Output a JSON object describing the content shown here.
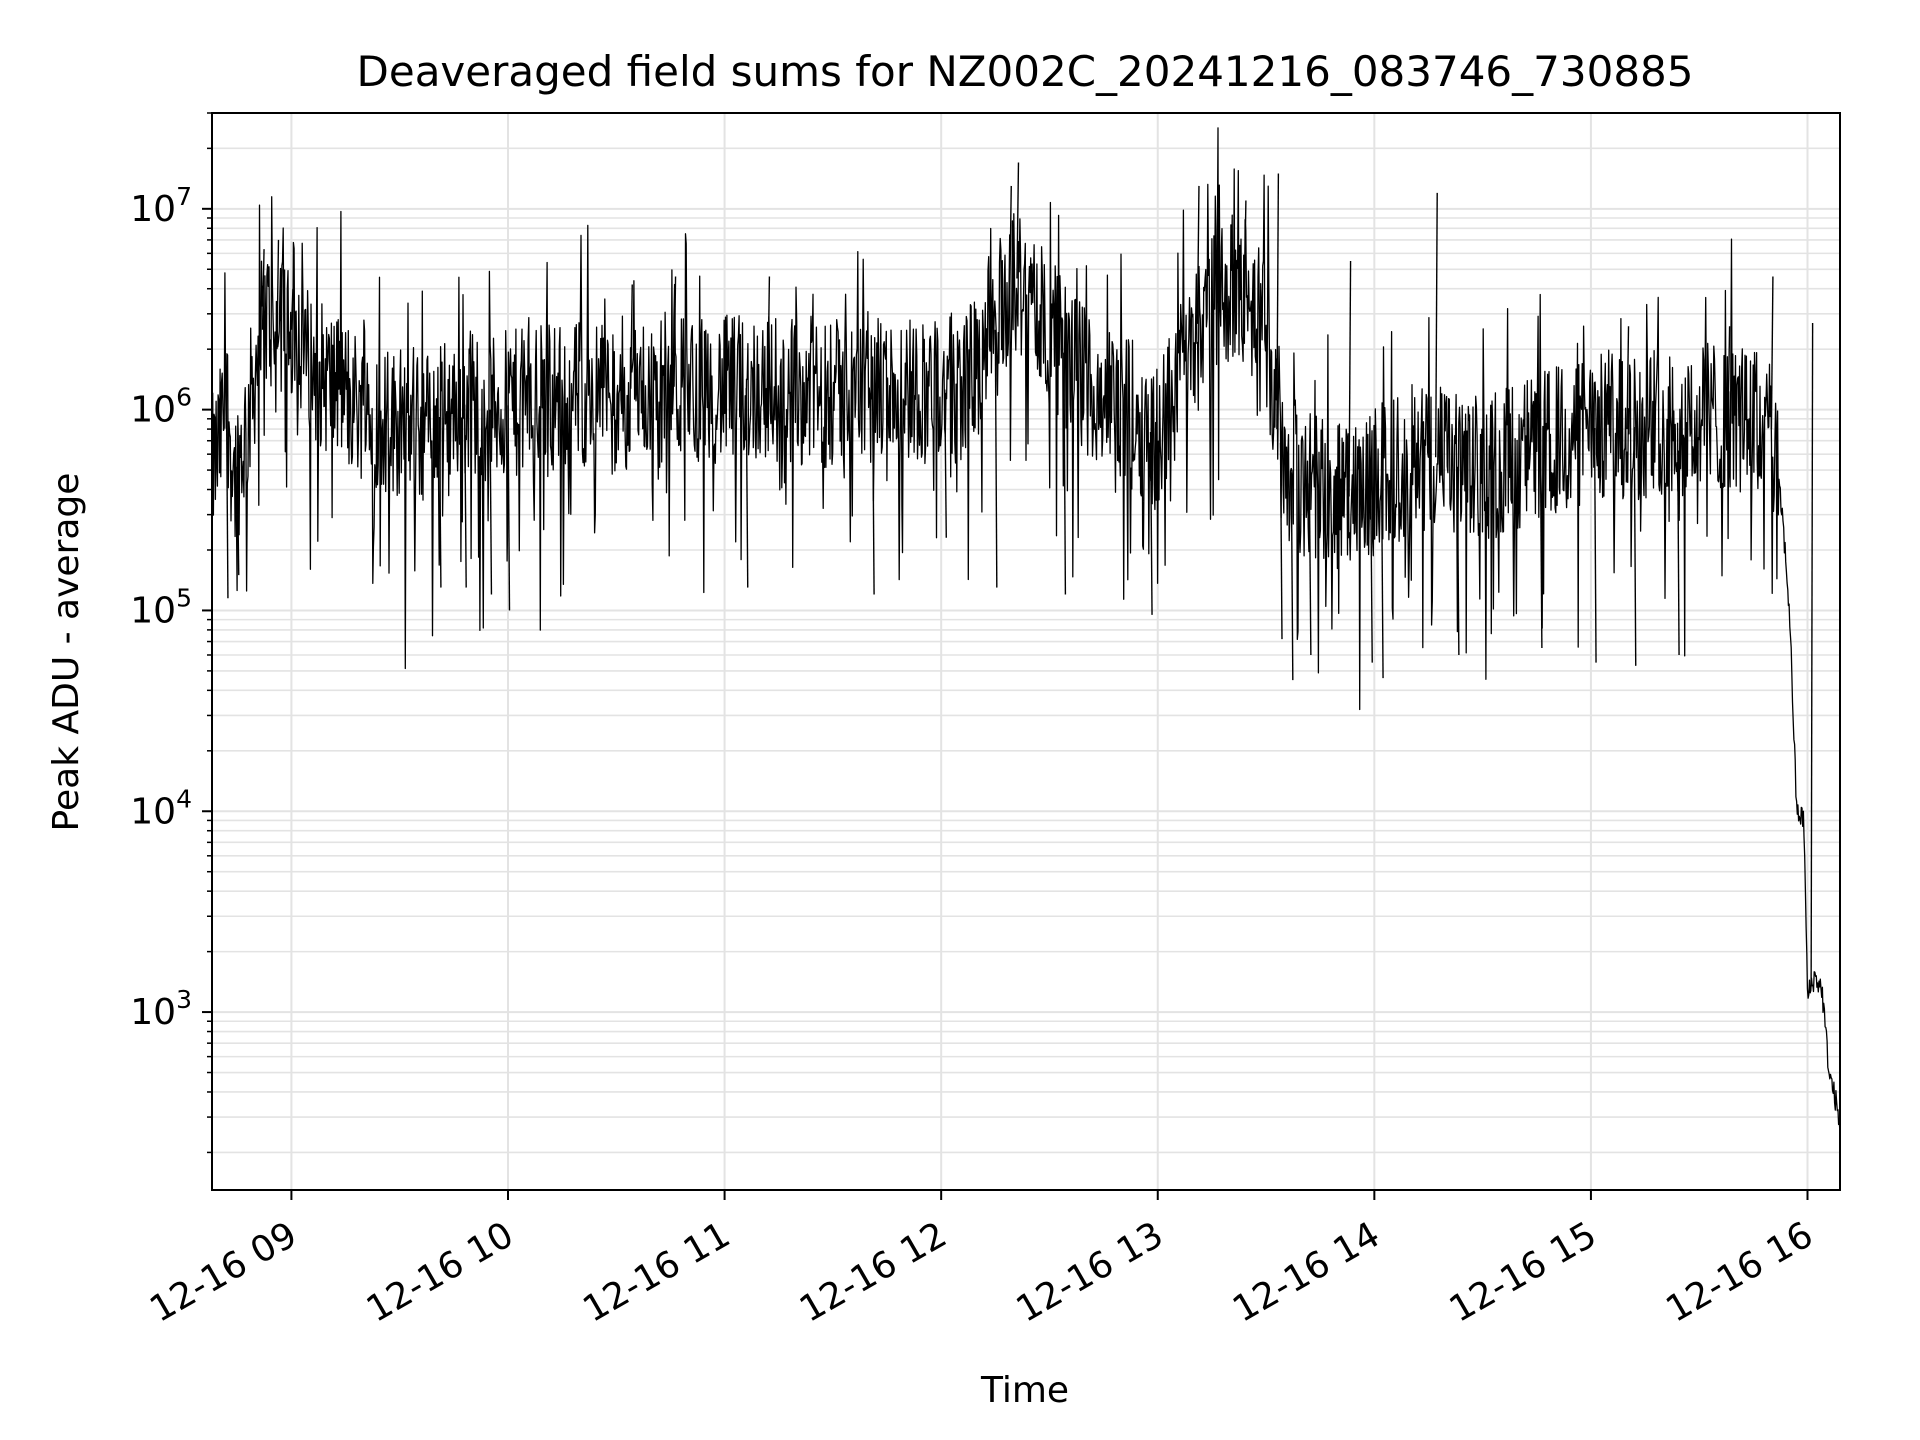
{
  "chart_data": {
    "type": "line",
    "title": "Deaveraged field sums for NZ002C_20241216_083746_730885",
    "xlabel": "Time",
    "ylabel": "Peak ADU - average",
    "yscale": "log",
    "xlim": [
      "2024-12-16 08:38",
      "2024-12-16 16:09"
    ],
    "ylim": [
      130,
      30000000
    ],
    "grid": true,
    "line_color": "#000000",
    "x_ticks": [
      {
        "label": "12-16 09",
        "time": "2024-12-16 09:00"
      },
      {
        "label": "12-16 10",
        "time": "2024-12-16 10:00"
      },
      {
        "label": "12-16 11",
        "time": "2024-12-16 11:00"
      },
      {
        "label": "12-16 12",
        "time": "2024-12-16 12:00"
      },
      {
        "label": "12-16 13",
        "time": "2024-12-16 13:00"
      },
      {
        "label": "12-16 14",
        "time": "2024-12-16 14:00"
      },
      {
        "label": "12-16 15",
        "time": "2024-12-16 15:00"
      },
      {
        "label": "12-16 16",
        "time": "2024-12-16 16:00"
      }
    ],
    "y_ticks": [
      {
        "base": "10",
        "exp": "3",
        "value": 1000
      },
      {
        "base": "10",
        "exp": "4",
        "value": 10000
      },
      {
        "base": "10",
        "exp": "5",
        "value": 100000
      },
      {
        "base": "10",
        "exp": "6",
        "value": 1000000
      },
      {
        "base": "10",
        "exp": "7",
        "value": 10000000
      }
    ],
    "series": [
      {
        "points": [
          [
            "2024-12-16 08:38",
            500000
          ],
          [
            "2024-12-16 08:40",
            650000
          ],
          [
            "2024-12-16 08:42",
            1200000
          ],
          [
            "2024-12-16 08:44",
            450000
          ],
          [
            "2024-12-16 08:46",
            600000
          ],
          [
            "2024-12-16 08:48",
            900000
          ],
          [
            "2024-12-16 08:50",
            1600000
          ],
          [
            "2024-12-16 08:52",
            2500000
          ],
          [
            "2024-12-16 08:54",
            3000000
          ],
          [
            "2024-12-16 08:56",
            2000000
          ],
          [
            "2024-12-16 08:58",
            3800000
          ],
          [
            "2024-12-16 09:00",
            2500000
          ],
          [
            "2024-12-16 09:02",
            2200000
          ],
          [
            "2024-12-16 09:04",
            1800000
          ],
          [
            "2024-12-16 09:08",
            1500000
          ],
          [
            "2024-12-16 09:12",
            1300000
          ],
          [
            "2024-12-16 09:16",
            1200000
          ],
          [
            "2024-12-16 09:20",
            1000000
          ],
          [
            "2024-12-16 09:25",
            900000
          ],
          [
            "2024-12-16 09:30",
            850000
          ],
          [
            "2024-12-16 09:35",
            800000
          ],
          [
            "2024-12-16 09:40",
            900000
          ],
          [
            "2024-12-16 09:45",
            1000000
          ],
          [
            "2024-12-16 09:50",
            1100000
          ],
          [
            "2024-12-16 09:55",
            1000000
          ],
          [
            "2024-12-16 10:00",
            1050000
          ],
          [
            "2024-12-16 10:10",
            1150000
          ],
          [
            "2024-12-16 10:20",
            1200000
          ],
          [
            "2024-12-16 10:30",
            1250000
          ],
          [
            "2024-12-16 10:40",
            1300000
          ],
          [
            "2024-12-16 10:50",
            1300000
          ],
          [
            "2024-12-16 11:00",
            1250000
          ],
          [
            "2024-12-16 11:10",
            1300000
          ],
          [
            "2024-12-16 11:20",
            1250000
          ],
          [
            "2024-12-16 11:30",
            1200000
          ],
          [
            "2024-12-16 11:40",
            1200000
          ],
          [
            "2024-12-16 11:50",
            1300000
          ],
          [
            "2024-12-16 12:00",
            1250000
          ],
          [
            "2024-12-16 12:05",
            1300000
          ],
          [
            "2024-12-16 12:10",
            1600000
          ],
          [
            "2024-12-16 12:15",
            2500000
          ],
          [
            "2024-12-16 12:18",
            3500000
          ],
          [
            "2024-12-16 12:21",
            4500000
          ],
          [
            "2024-12-16 12:24",
            3500000
          ],
          [
            "2024-12-16 12:27",
            3000000
          ],
          [
            "2024-12-16 12:30",
            2500000
          ],
          [
            "2024-12-16 12:35",
            1800000
          ],
          [
            "2024-12-16 12:40",
            1400000
          ],
          [
            "2024-12-16 12:45",
            1200000
          ],
          [
            "2024-12-16 12:50",
            1000000
          ],
          [
            "2024-12-16 12:55",
            900000
          ],
          [
            "2024-12-16 13:00",
            700000
          ],
          [
            "2024-12-16 13:05",
            1500000
          ],
          [
            "2024-12-16 13:10",
            2500000
          ],
          [
            "2024-12-16 13:15",
            3500000
          ],
          [
            "2024-12-16 13:20",
            4000000
          ],
          [
            "2024-12-16 13:25",
            3500000
          ],
          [
            "2024-12-16 13:30",
            2500000
          ],
          [
            "2024-12-16 13:33",
            800000
          ],
          [
            "2024-12-16 13:36",
            500000
          ],
          [
            "2024-12-16 13:40",
            450000
          ],
          [
            "2024-12-16 13:45",
            400000
          ],
          [
            "2024-12-16 13:50",
            400000
          ],
          [
            "2024-12-16 13:55",
            350000
          ],
          [
            "2024-12-16 14:00",
            450000
          ],
          [
            "2024-12-16 14:05",
            500000
          ],
          [
            "2024-12-16 14:10",
            550000
          ],
          [
            "2024-12-16 14:15",
            600000
          ],
          [
            "2024-12-16 14:20",
            550000
          ],
          [
            "2024-12-16 14:25",
            500000
          ],
          [
            "2024-12-16 14:30",
            500000
          ],
          [
            "2024-12-16 14:35",
            550000
          ],
          [
            "2024-12-16 14:40",
            600000
          ],
          [
            "2024-12-16 14:45",
            650000
          ],
          [
            "2024-12-16 14:50",
            700000
          ],
          [
            "2024-12-16 14:55",
            750000
          ],
          [
            "2024-12-16 15:00",
            800000
          ],
          [
            "2024-12-16 15:05",
            850000
          ],
          [
            "2024-12-16 15:10",
            800000
          ],
          [
            "2024-12-16 15:15",
            850000
          ],
          [
            "2024-12-16 15:20",
            900000
          ],
          [
            "2024-12-16 15:25",
            850000
          ],
          [
            "2024-12-16 15:30",
            900000
          ],
          [
            "2024-12-16 15:35",
            950000
          ],
          [
            "2024-12-16 15:40",
            900000
          ],
          [
            "2024-12-16 15:45",
            850000
          ],
          [
            "2024-12-16 15:50",
            800000
          ],
          [
            "2024-12-16 15:53",
            300000
          ],
          [
            "2024-12-16 15:55",
            100000
          ],
          [
            "2024-12-16 15:57",
            10000
          ],
          [
            "2024-12-16 15:59",
            9000
          ],
          [
            "2024-12-16 16:00",
            1200
          ],
          [
            "2024-12-16 16:02",
            1500
          ],
          [
            "2024-12-16 16:04",
            1300
          ],
          [
            "2024-12-16 16:06",
            500
          ],
          [
            "2024-12-16 16:08",
            350
          ],
          [
            "2024-12-16 16:09",
            250
          ]
        ],
        "spikes": [
          [
            "2024-12-16 08:52",
            6300000
          ],
          [
            "2024-12-16 08:56",
            7000000
          ],
          [
            "2024-12-16 08:57",
            5000000
          ],
          [
            "2024-12-16 09:00",
            4000000
          ],
          [
            "2024-12-16 10:34",
            4200000
          ],
          [
            "2024-12-16 10:46",
            4600000
          ],
          [
            "2024-12-16 11:12",
            4600000
          ],
          [
            "2024-12-16 12:21",
            17000000
          ],
          [
            "2024-12-16 12:19",
            13000000
          ],
          [
            "2024-12-16 13:11",
            13000000
          ],
          [
            "2024-12-16 13:24",
            11000000
          ],
          [
            "2024-12-16 13:33",
            15000000
          ],
          [
            "2024-12-16 13:53",
            5500000
          ],
          [
            "2024-12-16 14:17",
            12000000
          ],
          [
            "2024-12-16 15:50",
            4600000
          ],
          [
            "2024-12-16 15:10",
            2600000
          ],
          [
            "2024-12-16 15:38",
            2600000
          ],
          [
            "2024-12-16 16:01",
            2700000
          ]
        ],
        "dips": [
          [
            "2024-12-16 08:42",
            115000
          ],
          [
            "2024-12-16 08:45",
            150000
          ],
          [
            "2024-12-16 09:41",
            130000
          ],
          [
            "2024-12-16 09:48",
            130000
          ],
          [
            "2024-12-16 09:55",
            120000
          ],
          [
            "2024-12-16 10:00",
            100000
          ],
          [
            "2024-12-16 11:06",
            130000
          ],
          [
            "2024-12-16 11:41",
            120000
          ],
          [
            "2024-12-16 12:01",
            230000
          ],
          [
            "2024-12-16 12:15",
            130000
          ],
          [
            "2024-12-16 12:34",
            120000
          ],
          [
            "2024-12-16 12:58",
            95000
          ],
          [
            "2024-12-16 13:34",
            72000
          ],
          [
            "2024-12-16 13:37",
            45000
          ],
          [
            "2024-12-16 13:42",
            60000
          ],
          [
            "2024-12-16 13:59",
            55000
          ],
          [
            "2024-12-16 14:02",
            46000
          ],
          [
            "2024-12-16 14:23",
            60000
          ],
          [
            "2024-12-16 14:46",
            65000
          ],
          [
            "2024-12-16 15:01",
            55000
          ],
          [
            "2024-12-16 15:12",
            53000
          ],
          [
            "2024-12-16 15:24",
            60000
          ]
        ]
      }
    ]
  }
}
